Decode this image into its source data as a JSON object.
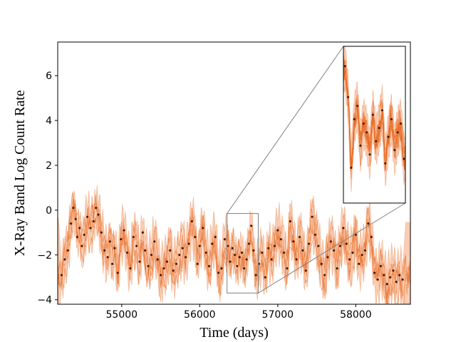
{
  "chart_data": {
    "type": "scatter",
    "title": "",
    "xlabel": "Time (days)",
    "ylabel": "X-Ray Band Log Count Rate",
    "xlim": [
      54180,
      58700
    ],
    "ylim": [
      -4.2,
      7.5
    ],
    "xticks": [
      55000,
      56000,
      57000,
      58000
    ],
    "yticks": [
      -4,
      -2,
      0,
      2,
      4,
      6
    ],
    "xtick_labels": [
      "55000",
      "56000",
      "57000",
      "58000"
    ],
    "ytick_labels": [
      "−4",
      "−2",
      "0",
      "2",
      "4",
      "6"
    ],
    "grid": false,
    "legend": "none",
    "colors": {
      "band": "#f9cdb4",
      "band_edge": "#f0a070",
      "samples": "#e8661c",
      "points": "#1a1a1a",
      "zoom_box": "#808080"
    },
    "series": [
      {
        "kind": "observations",
        "x": [
          54230,
          54270,
          54310,
          54350,
          54380,
          54410,
          54430,
          54460,
          54490,
          54520,
          54560,
          54600,
          54640,
          54670,
          54700,
          54740,
          54780,
          54820,
          54850,
          54880,
          54910,
          54950,
          54990,
          55030,
          55070,
          55110,
          55150,
          55190,
          55230,
          55270,
          55300,
          55340,
          55380,
          55420,
          55460,
          55500,
          55540,
          55580,
          55620,
          55660,
          55700,
          55740,
          55780,
          55820,
          55860,
          55900,
          55940,
          55970,
          56000,
          56040,
          56080,
          56120,
          56160,
          56200,
          56240,
          56280,
          56320,
          56360,
          56390,
          56420,
          56450,
          56480,
          56510,
          56540,
          56570,
          56600,
          56630,
          56660,
          56690,
          56720,
          56760,
          56800,
          56840,
          56880,
          56920,
          56960,
          57000,
          57040,
          57080,
          57120,
          57160,
          57200,
          57240,
          57280,
          57320,
          57360,
          57400,
          57440,
          57480,
          57520,
          57560,
          57600,
          57640,
          57680,
          57720,
          57760,
          57800,
          57840,
          57880,
          57920,
          57960,
          58000,
          58040,
          58080,
          58120,
          58160,
          58200,
          58240,
          58280,
          58320,
          58360,
          58400,
          58440,
          58480,
          58520,
          58560,
          58600
        ],
        "y": [
          -2.9,
          -2.2,
          -1.8,
          -0.6,
          0.1,
          -0.4,
          -1.2,
          -0.8,
          -1.6,
          -1.1,
          -0.3,
          -0.8,
          -0.5,
          0.1,
          -0.2,
          -1.0,
          -1.8,
          -2.1,
          -1.4,
          -2.4,
          -1.7,
          -2.8,
          -1.3,
          -0.9,
          -1.9,
          -2.6,
          -1.2,
          -1.6,
          -2.3,
          -1.0,
          -1.8,
          -2.5,
          -2.0,
          -1.4,
          -2.2,
          -2.9,
          -2.6,
          -2.3,
          -1.8,
          -2.7,
          -2.4,
          -2.0,
          -1.7,
          -2.1,
          -1.5,
          -0.5,
          -1.2,
          -2.4,
          -1.6,
          -0.8,
          -1.9,
          -2.5,
          -1.5,
          -1.2,
          -2.8,
          -2.6,
          -1.3,
          -1.6,
          -2.3,
          -1.7,
          -2.0,
          -2.5,
          -2.1,
          -1.9,
          -2.6,
          -2.2,
          -1.5,
          -0.7,
          -1.8,
          -2.9,
          -2.4,
          -1.9,
          -3.0,
          -1.7,
          -2.2,
          -1.6,
          -0.9,
          -1.3,
          -1.9,
          -2.6,
          -0.5,
          -1.4,
          -2.2,
          -1.2,
          -1.8,
          -2.7,
          -1.5,
          -0.3,
          -1.1,
          -1.6,
          -2.4,
          -2.9,
          -2.1,
          -1.4,
          -1.8,
          -2.6,
          -1.6,
          -0.8,
          -1.5,
          -2.2,
          -1.9,
          -1.1,
          -2.4,
          -2.0,
          -1.8,
          -0.6,
          -1.2,
          -2.8,
          -3.1,
          -2.5,
          -2.9,
          -3.3,
          -3.0,
          -2.7,
          -3.2,
          -2.9,
          -3.1
        ]
      }
    ],
    "inset": {
      "xlim": [
        56350,
        56750
      ],
      "ylim": [
        -3.7,
        -0.15
      ],
      "x": [
        56360,
        56380,
        56400,
        56420,
        56440,
        56460,
        56480,
        56500,
        56520,
        56540,
        56560,
        56580,
        56600,
        56620,
        56640,
        56660,
        56680,
        56700,
        56720,
        56740
      ],
      "y": [
        -0.6,
        -1.3,
        -2.9,
        -1.8,
        -1.5,
        -2.4,
        -1.9,
        -2.1,
        -2.6,
        -1.7,
        -2.3,
        -2.0,
        -1.6,
        -2.8,
        -2.2,
        -1.8,
        -2.5,
        -2.1,
        -1.9,
        -2.7
      ]
    }
  }
}
